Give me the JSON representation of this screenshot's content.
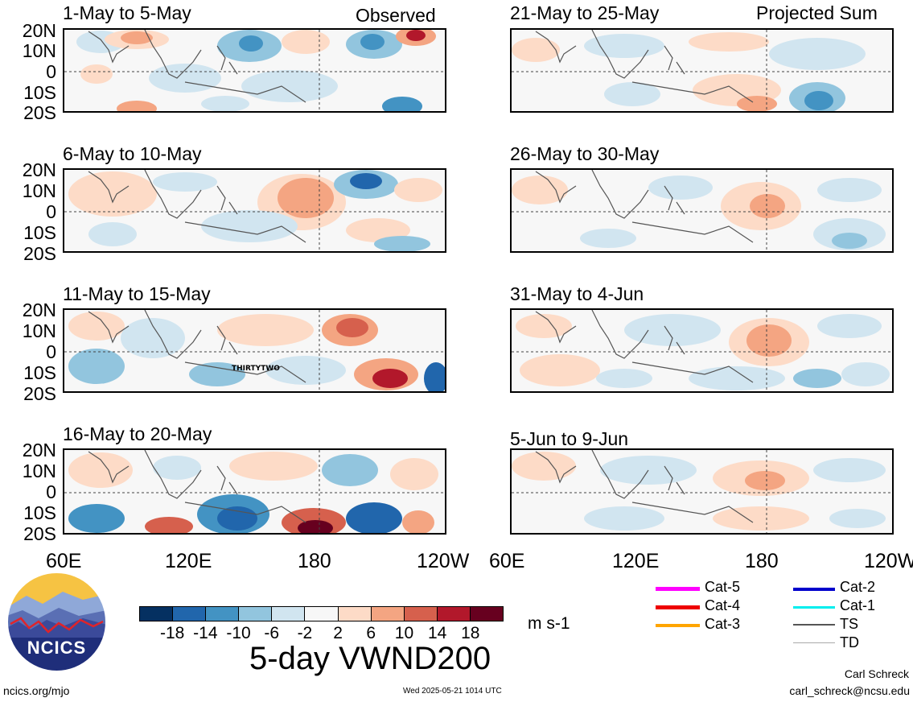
{
  "column_labels": {
    "left": "Observed",
    "right": "Projected Sum"
  },
  "lat_labels": [
    "20N",
    "10N",
    "0",
    "10S",
    "20S"
  ],
  "lon_labels": [
    "60E",
    "120E",
    "180",
    "120W"
  ],
  "panels": [
    {
      "title": "1-May to 5-May"
    },
    {
      "title": "6-May to 10-May"
    },
    {
      "title": "11-May to 15-May",
      "storm_label": "THIRTYTWO"
    },
    {
      "title": "16-May to 20-May"
    },
    {
      "title": "21-May to 25-May"
    },
    {
      "title": "26-May to 30-May"
    },
    {
      "title": "31-May to 4-Jun"
    },
    {
      "title": "5-Jun to 9-Jun"
    }
  ],
  "colorbar": {
    "colors": [
      "#053061",
      "#2166ac",
      "#4393c3",
      "#92c5de",
      "#d1e5f0",
      "#f7f7f7",
      "#fddbc7",
      "#f4a582",
      "#d6604d",
      "#b2182b",
      "#67001f"
    ],
    "ticks": [
      "-18",
      "-14",
      "-10",
      "-6",
      "-2",
      "2",
      "6",
      "10",
      "14",
      "18"
    ],
    "units": "m s-1"
  },
  "main_title": "5-day VWND200",
  "logo_text": "NCICS",
  "storm_legend": [
    {
      "label": "Cat-5",
      "color": "#ff00ff"
    },
    {
      "label": "Cat-4",
      "color": "#ee0000"
    },
    {
      "label": "Cat-3",
      "color": "#ffa500"
    },
    {
      "label": "Cat-2",
      "color": "#0000cc"
    },
    {
      "label": "Cat-1",
      "color": "#00eeee"
    },
    {
      "label": "TS",
      "color": "#555555"
    },
    {
      "label": "TD",
      "color": "#aaaaaa"
    }
  ],
  "footer": {
    "url": "ncics.org/mjo",
    "timestamp": "Wed 2025-05-21 1014 UTC",
    "author": "Carl Schreck",
    "email": "carl_schreck@ncsu.edu"
  }
}
